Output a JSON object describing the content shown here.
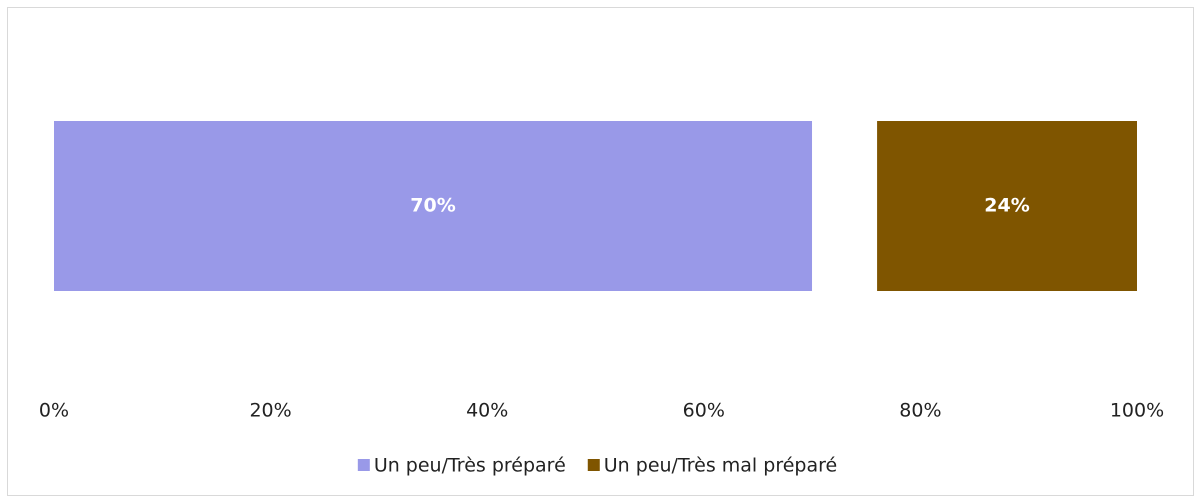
{
  "chart_data": {
    "type": "stacked-bar-horizontal",
    "categories": [
      null
    ],
    "series": [
      {
        "name": "Un peu/Très préparé",
        "color": "#9999e8",
        "values": [
          70
        ],
        "value_labels": [
          "70%"
        ]
      },
      {
        "color": "#ffffff",
        "values": [
          6
        ]
      },
      {
        "name": "Un peu/Très mal préparé",
        "color": "#7f5500",
        "values": [
          24
        ],
        "value_labels": [
          "24%"
        ]
      }
    ],
    "xlim": [
      0,
      100
    ],
    "xticks": [
      {
        "value": 0,
        "label": "0%"
      },
      {
        "value": 20,
        "label": "20%"
      },
      {
        "value": 40,
        "label": "40%"
      },
      {
        "value": 60,
        "label": "60%"
      },
      {
        "value": 80,
        "label": "80%"
      },
      {
        "value": 100,
        "label": "100%"
      }
    ],
    "grid": false,
    "legend": "bottom"
  }
}
